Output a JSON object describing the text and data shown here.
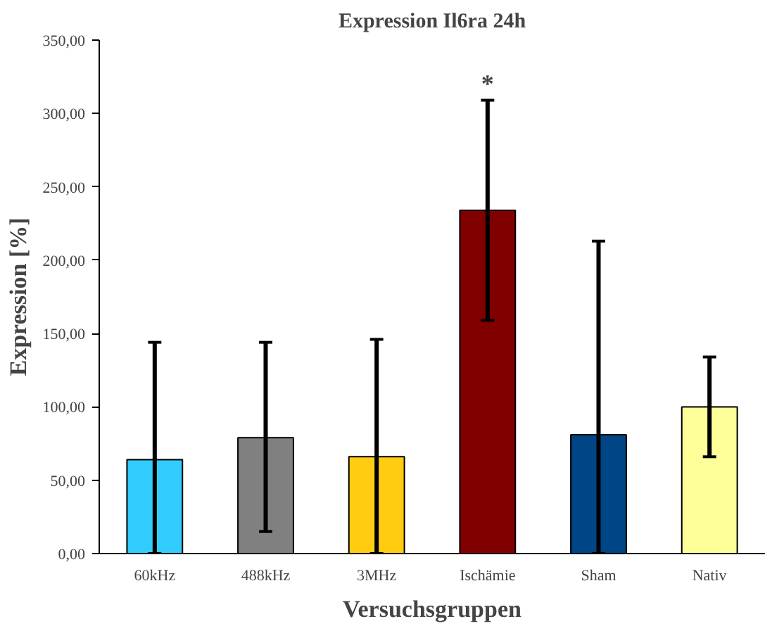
{
  "chart_data": {
    "type": "bar",
    "title": "Expression Il6ra 24h",
    "xlabel": "Versuchsgruppen",
    "ylabel": "Expression [%]",
    "categories": [
      "60kHz",
      "488kHz",
      "3MHz",
      "Ischämie",
      "Sham",
      "Nativ"
    ],
    "values": [
      64,
      79,
      66,
      234,
      81,
      100
    ],
    "colors": [
      "#33ccff",
      "#808080",
      "#ffcc11",
      "#800000",
      "#004586",
      "#ffff99"
    ],
    "errors": [
      [
        0,
        144
      ],
      [
        15,
        144
      ],
      [
        0,
        146
      ],
      [
        159,
        309
      ],
      [
        0,
        213
      ],
      [
        66,
        134
      ]
    ],
    "ylim": [
      0,
      350
    ],
    "yticks": [
      {
        "value": 0,
        "label": "0,00"
      },
      {
        "value": 50,
        "label": "50,00"
      },
      {
        "value": 100,
        "label": "100,00"
      },
      {
        "value": 150,
        "label": "150,00"
      },
      {
        "value": 200,
        "label": "200,00"
      },
      {
        "value": 250,
        "label": "250,00"
      },
      {
        "value": 300,
        "label": "300,00"
      },
      {
        "value": 350,
        "label": "350,00"
      }
    ],
    "annotations": [
      "*"
    ],
    "grid": false
  }
}
